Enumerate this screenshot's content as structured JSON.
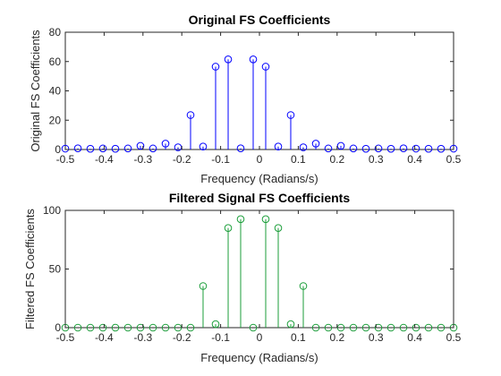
{
  "colors": {
    "axes": "#262626"
  },
  "chart_data": [
    {
      "type": "stem",
      "title": "Original FS Coefficients",
      "xlabel": "Frequency (Radians/s)",
      "ylabel": "Original  FS Coefficients",
      "xlim": [
        -0.5,
        0.5
      ],
      "ylim": [
        0,
        80
      ],
      "xticks": [
        -0.5,
        -0.4,
        -0.3,
        -0.2,
        -0.1,
        0,
        0.1,
        0.2,
        0.3,
        0.4,
        0.5
      ],
      "xtick_labels": [
        "-0.5",
        "-0.4",
        "-0.3",
        "-0.2",
        "-0.1",
        "0",
        "0.1",
        "0.2",
        "0.3",
        "0.4",
        "0.5"
      ],
      "yticks": [
        0,
        20,
        40,
        60,
        80
      ],
      "ytick_labels": [
        "0",
        "20",
        "40",
        "60",
        "80"
      ],
      "color": "#0000ff",
      "marker": "circle",
      "grid": false,
      "x": [
        -0.5,
        -0.4677,
        -0.4355,
        -0.4032,
        -0.371,
        -0.3387,
        -0.3065,
        -0.2742,
        -0.2419,
        -0.2097,
        -0.1774,
        -0.1452,
        -0.1129,
        -0.0806,
        -0.0484,
        -0.0161,
        0.0161,
        0.0484,
        0.0806,
        0.1129,
        0.1452,
        0.1774,
        0.2097,
        0.2419,
        0.2742,
        0.3065,
        0.3387,
        0.371,
        0.4032,
        0.4355,
        0.4677,
        0.5
      ],
      "y": [
        0.6,
        0.8,
        0.5,
        0.7,
        0.5,
        0.7,
        2.5,
        0.7,
        4.0,
        1.5,
        23.5,
        2.0,
        56.5,
        61.5,
        0.8,
        61.5,
        56.5,
        2.0,
        23.5,
        1.5,
        4.0,
        0.7,
        2.5,
        0.7,
        0.5,
        0.7,
        0.5,
        0.8,
        0.6,
        0.5,
        0.5,
        0.6
      ]
    },
    {
      "type": "stem",
      "title": "Filtered Signal FS Coefficients",
      "xlabel": "Frequency (Radians/s)",
      "ylabel": "Filtered FS Coefficients",
      "xlim": [
        -0.5,
        0.5
      ],
      "ylim": [
        0,
        100
      ],
      "xticks": [
        -0.5,
        -0.4,
        -0.3,
        -0.2,
        -0.1,
        0,
        0.1,
        0.2,
        0.3,
        0.4,
        0.5
      ],
      "xtick_labels": [
        "-0.5",
        "-0.4",
        "-0.3",
        "-0.2",
        "-0.1",
        "0",
        "0.1",
        "0.2",
        "0.3",
        "0.4",
        "0.5"
      ],
      "yticks": [
        0,
        50,
        100
      ],
      "ytick_labels": [
        "0",
        "50",
        "100"
      ],
      "color": "#1b9e3a",
      "marker": "circle",
      "grid": false,
      "x": [
        -0.5,
        -0.4677,
        -0.4355,
        -0.4032,
        -0.371,
        -0.3387,
        -0.3065,
        -0.2742,
        -0.2419,
        -0.2097,
        -0.1774,
        -0.1452,
        -0.1129,
        -0.0806,
        -0.0484,
        -0.0161,
        0.0161,
        0.0484,
        0.0806,
        0.1129,
        0.1452,
        0.1774,
        0.2097,
        0.2419,
        0.2742,
        0.3065,
        0.3387,
        0.371,
        0.4032,
        0.4355,
        0.4677,
        0.5
      ],
      "y": [
        0,
        0,
        0,
        0,
        0,
        0,
        0,
        0,
        0,
        0,
        0,
        35.5,
        3.0,
        85.0,
        92.5,
        0,
        92.5,
        85.0,
        3.0,
        35.5,
        0,
        0,
        0,
        0,
        0,
        0,
        0,
        0,
        0,
        0,
        0,
        0
      ]
    }
  ]
}
